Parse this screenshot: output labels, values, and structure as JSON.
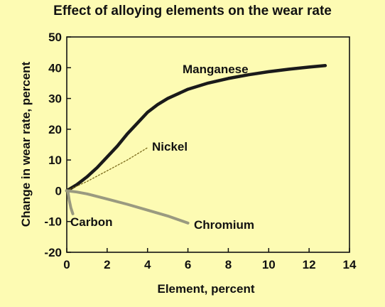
{
  "chart_data": {
    "type": "line",
    "title": "Effect of alloying elements on the wear rate",
    "xlabel": "Element, percent",
    "ylabel": "Change in wear rate, percent",
    "xlim": [
      0,
      14
    ],
    "ylim": [
      -20,
      50
    ],
    "x_ticks": [
      0,
      2,
      4,
      6,
      8,
      10,
      12,
      14
    ],
    "y_ticks": [
      -20,
      -10,
      0,
      10,
      20,
      30,
      40,
      50
    ],
    "x_tick_labels": [
      "0",
      "2",
      "4",
      "6",
      "8",
      "10",
      "12",
      "14"
    ],
    "y_tick_labels": [
      "-20",
      "-10",
      "0",
      "10",
      "20",
      "30",
      "40",
      "50"
    ],
    "grid": false,
    "colors": {
      "background": "#fdfbb3",
      "frame": "#111111",
      "manganese": "#1a1a1a",
      "nickel": "#7a6a1a",
      "chromium": "#9a9a80",
      "carbon": "#9a9a80"
    },
    "series": [
      {
        "name": "Manganese",
        "style": "solid-thick",
        "x": [
          0,
          0.5,
          1,
          1.5,
          2,
          2.5,
          3,
          3.5,
          4,
          4.5,
          5,
          6,
          7,
          8,
          9,
          10,
          11,
          12,
          12.8
        ],
        "y": [
          0,
          2,
          4.5,
          7.5,
          11,
          14.5,
          18.5,
          22,
          25.5,
          28,
          30,
          33,
          35,
          36.5,
          37.7,
          38.7,
          39.5,
          40.2,
          40.7
        ]
      },
      {
        "name": "Nickel",
        "style": "dotted",
        "x": [
          0,
          1,
          2,
          3,
          4
        ],
        "y": [
          0,
          3,
          6.5,
          10,
          14
        ]
      },
      {
        "name": "Chromium",
        "style": "solid-medium",
        "x": [
          0,
          0.5,
          1,
          2,
          3,
          4,
          5,
          6
        ],
        "y": [
          0,
          -0.4,
          -1,
          -2.7,
          -4.4,
          -6.3,
          -8.2,
          -10.5
        ]
      },
      {
        "name": "Carbon",
        "style": "solid-medium",
        "x": [
          0.05,
          0.12,
          0.2,
          0.3
        ],
        "y": [
          0,
          -3,
          -5.5,
          -7.5
        ]
      }
    ]
  }
}
